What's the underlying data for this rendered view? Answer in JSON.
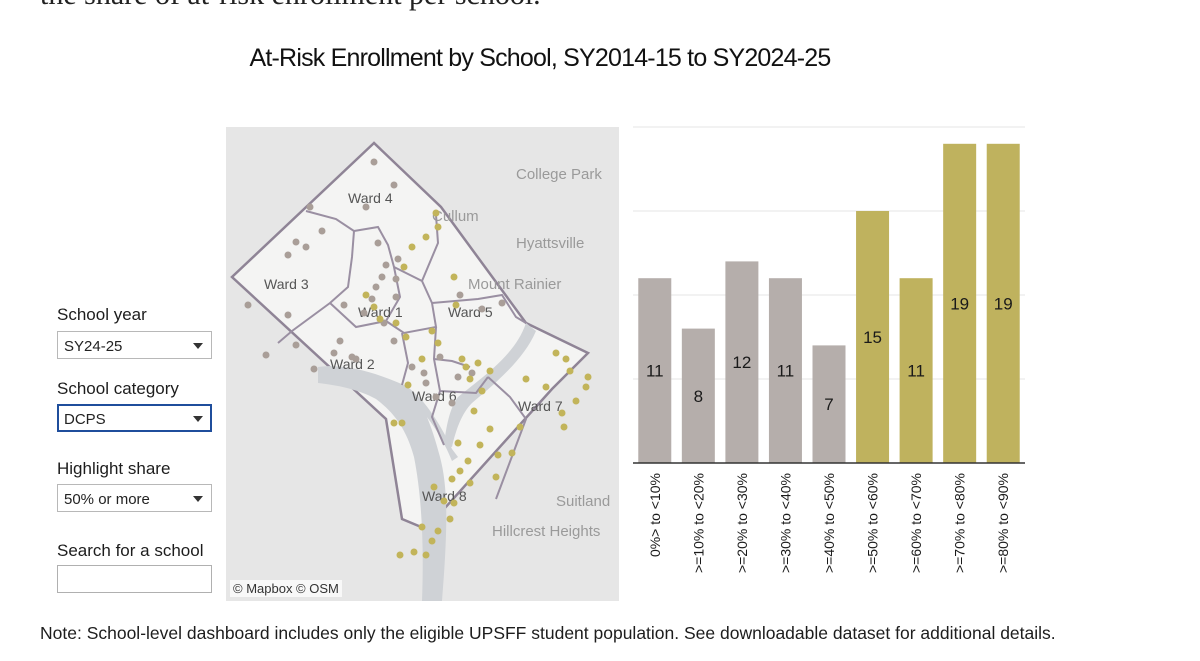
{
  "intro": "the share of at-risk enrollment per school.",
  "title": "At-Risk Enrollment by School, SY2014-15 to SY2024-25",
  "controls": {
    "school_year_label": "School year",
    "school_year_value": "SY24-25",
    "school_category_label": "School category",
    "school_category_value": "DCPS",
    "highlight_label": "Highlight share",
    "highlight_value": "50% or more",
    "search_label": "Search for a school",
    "search_placeholder": ""
  },
  "map": {
    "attribution": "© Mapbox © OSM",
    "place_labels": [
      "College Park",
      "Cullum",
      "Hyattsville",
      "Mount Rainier",
      "Suitland",
      "Hillcrest Heights"
    ],
    "ward_labels": [
      "Ward 4",
      "Ward 3",
      "Ward 1",
      "Ward 5",
      "Ward 2",
      "Ward 6",
      "Ward 7",
      "Ward 8"
    ],
    "colors": {
      "gray_dot": "#a99e98",
      "gold_dot": "#c2b45a"
    }
  },
  "chart_data": {
    "type": "bar",
    "categories": [
      "0%> to <10%",
      ">=10% to <20%",
      ">=20% to <30%",
      ">=30% to <40%",
      ">=40% to <50%",
      ">=50% to <60%",
      ">=60% to <70%",
      ">=70% to <80%",
      ">=80% to <90%"
    ],
    "values": [
      11,
      8,
      12,
      11,
      7,
      15,
      11,
      19,
      19
    ],
    "highlight": [
      false,
      false,
      false,
      false,
      false,
      true,
      true,
      true,
      true
    ],
    "ylim": [
      0,
      20
    ],
    "gridlines": [
      5,
      10,
      15,
      20
    ],
    "colors": {
      "base": "#b5aeab",
      "highlight": "#bfb25e",
      "grid": "#e6e6e6",
      "axis": "#333333"
    }
  },
  "footnote": "Note: School-level dashboard includes only the eligible UPSFF student population. See downloadable dataset for additional details."
}
